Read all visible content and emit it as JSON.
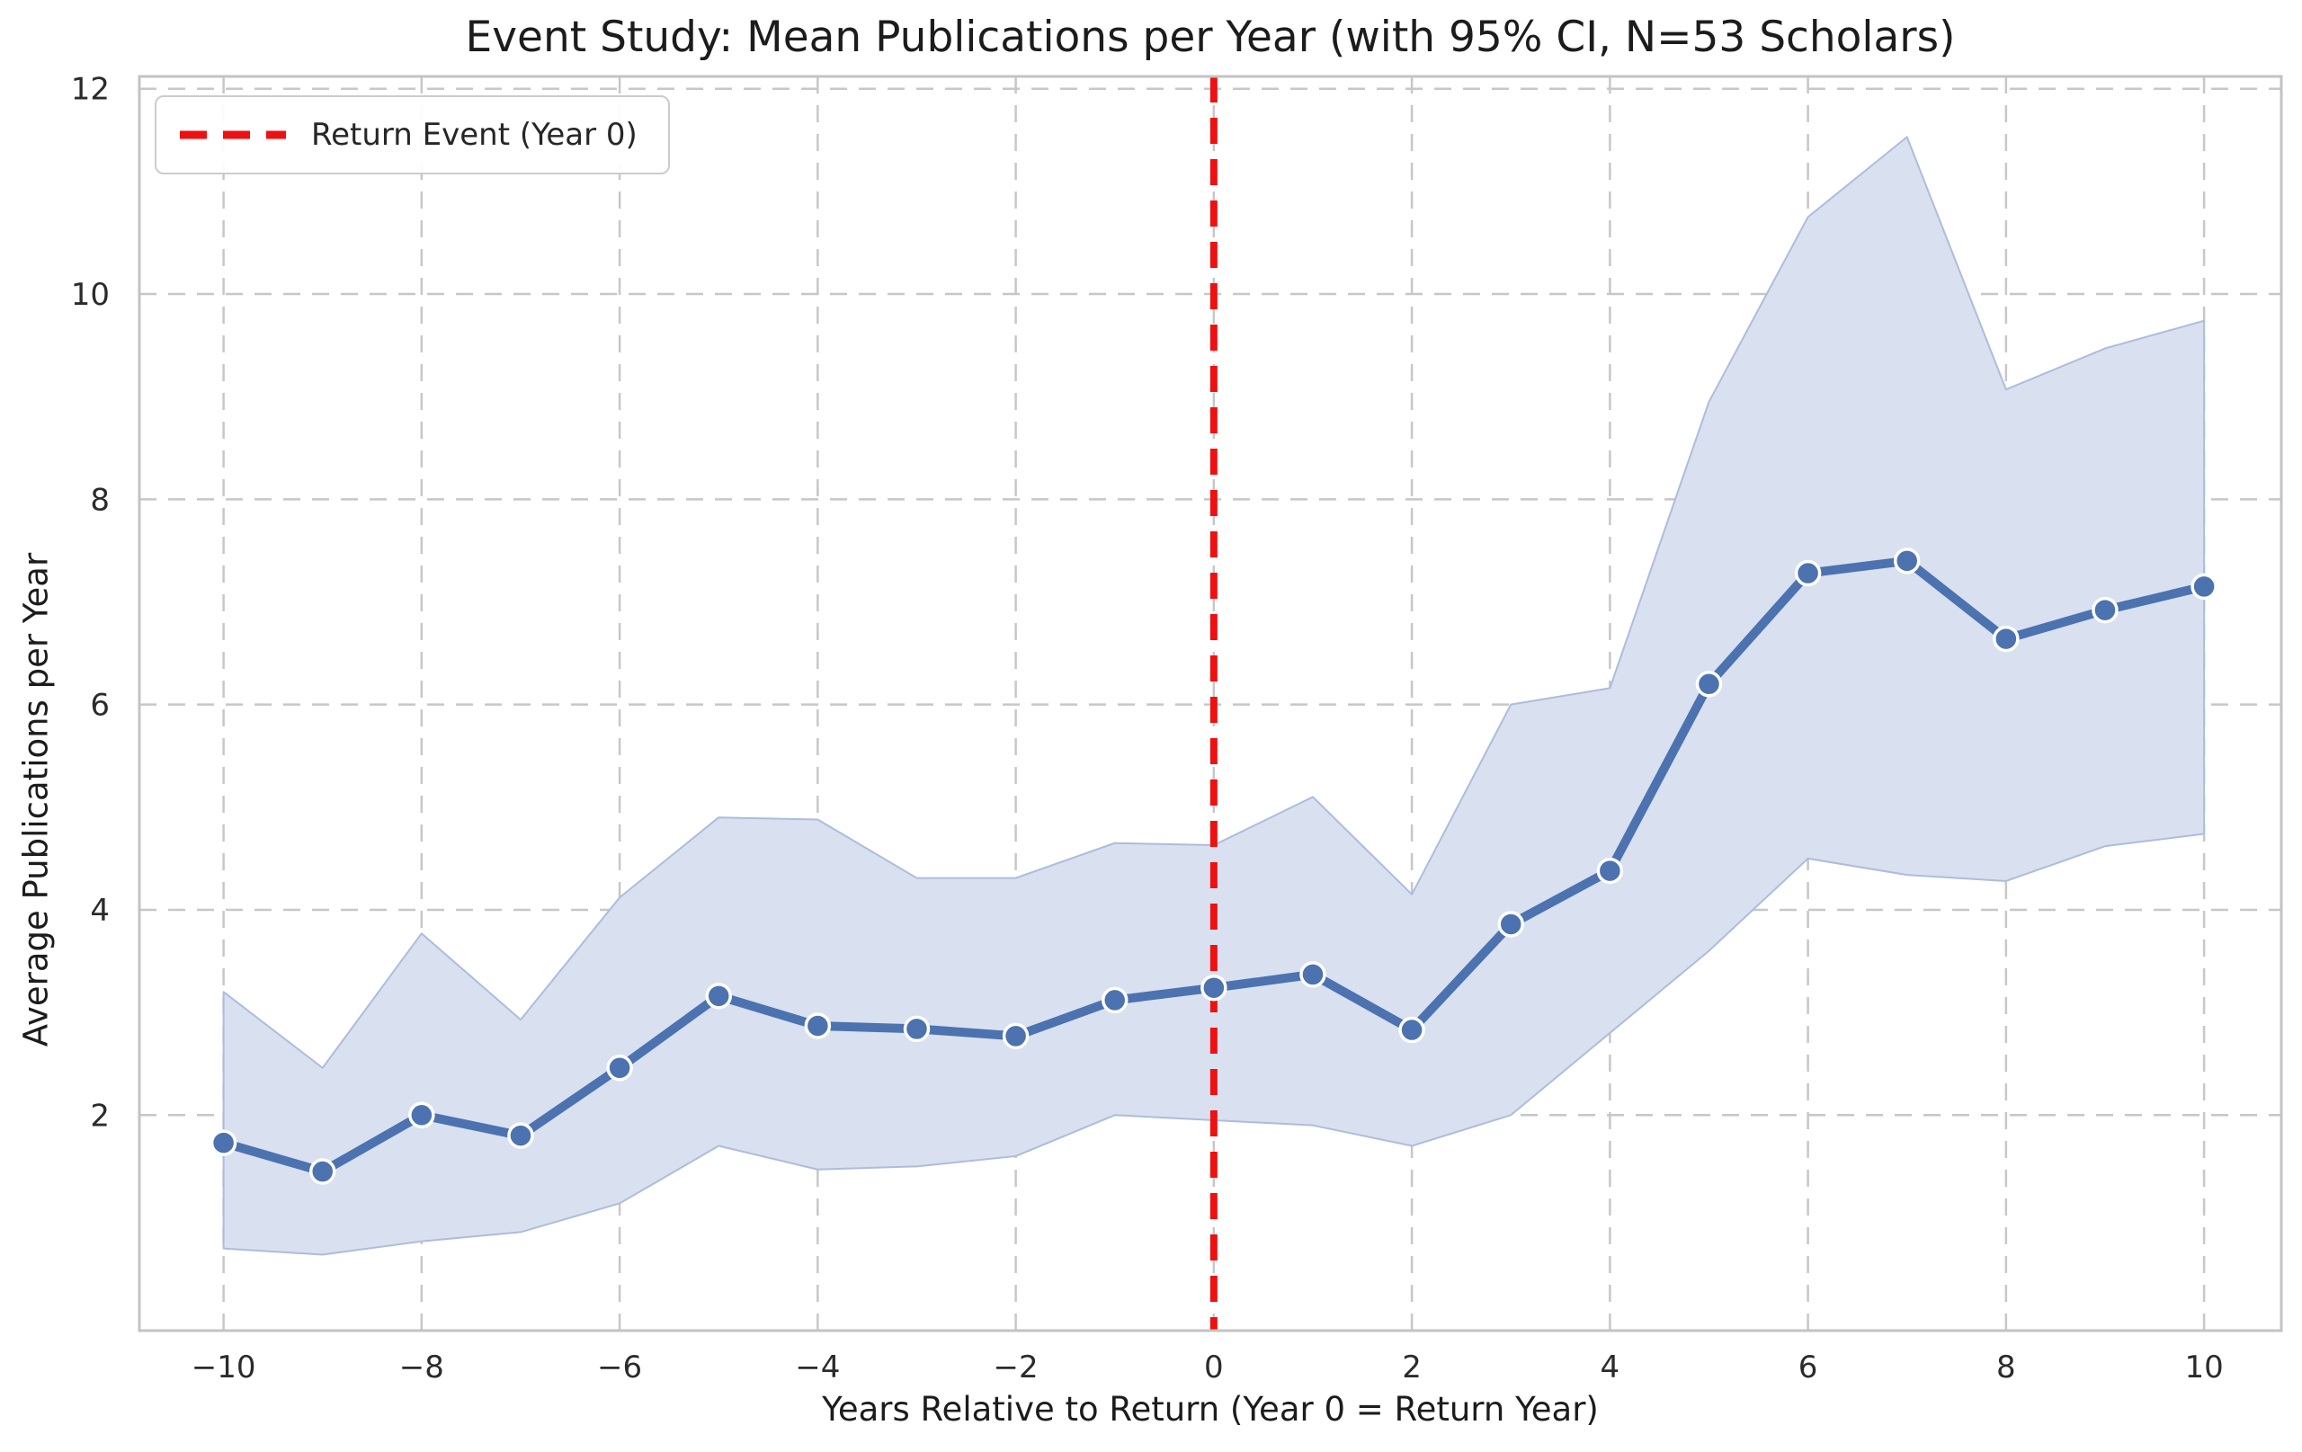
{
  "figure": {
    "title": "Event Study: Mean Publications per Year (with 95% CI, N=53 Scholars)",
    "xlabel": "Years Relative to Return (Year 0 = Return Year)",
    "ylabel": "Average Publications per Year"
  },
  "legend": {
    "return_event_label": "Return Event (Year 0)"
  },
  "colors": {
    "line": "#4c72b0",
    "marker_fill": "#4c72b0",
    "marker_edge": "#ffffff",
    "band_fill": "#d9e0ef",
    "band_edge": "#aebcdc",
    "event_line": "#ee1111",
    "grid": "#c7c7c7",
    "spine": "#c3c3c3",
    "tick_text": "#2b2b2b"
  },
  "chart_data": {
    "type": "line",
    "title": "Event Study: Mean Publications per Year (with 95% CI, N=53 Scholars)",
    "xlabel": "Years Relative to Return (Year 0 = Return Year)",
    "ylabel": "Average Publications per Year",
    "x": [
      -10,
      -9,
      -8,
      -7,
      -6,
      -5,
      -4,
      -3,
      -2,
      -1,
      0,
      1,
      2,
      3,
      4,
      5,
      6,
      7,
      8,
      9,
      10
    ],
    "series": [
      {
        "name": "Mean publications per year",
        "values": [
          1.73,
          1.45,
          2.0,
          1.8,
          2.46,
          3.16,
          2.87,
          2.84,
          2.77,
          3.12,
          3.24,
          3.37,
          2.83,
          3.86,
          4.38,
          6.2,
          7.28,
          7.4,
          6.64,
          6.92,
          7.15
        ]
      },
      {
        "name": "95% CI upper",
        "values": [
          3.2,
          2.46,
          3.77,
          2.93,
          4.12,
          4.9,
          4.88,
          4.31,
          4.31,
          4.65,
          4.63,
          5.1,
          4.15,
          6.0,
          6.16,
          8.95,
          10.75,
          11.53,
          9.07,
          9.47,
          9.74
        ]
      },
      {
        "name": "95% CI lower",
        "values": [
          0.7,
          0.64,
          0.77,
          0.86,
          1.14,
          1.7,
          1.47,
          1.5,
          1.6,
          2.0,
          1.95,
          1.9,
          1.7,
          2.0,
          2.8,
          3.6,
          4.5,
          4.34,
          4.28,
          4.62,
          4.74
        ]
      }
    ],
    "event_x": 0,
    "event_label": "Return Event (Year 0)",
    "x_ticks": [
      -10,
      -8,
      -6,
      -4,
      -2,
      0,
      2,
      4,
      6,
      8,
      10
    ],
    "y_ticks": [
      2,
      4,
      6,
      8,
      10,
      12
    ],
    "xlim": [
      -10.85,
      10.78
    ],
    "ylim": [
      -0.1,
      12.12
    ],
    "grid": "dashed",
    "legend_position": "upper left"
  }
}
